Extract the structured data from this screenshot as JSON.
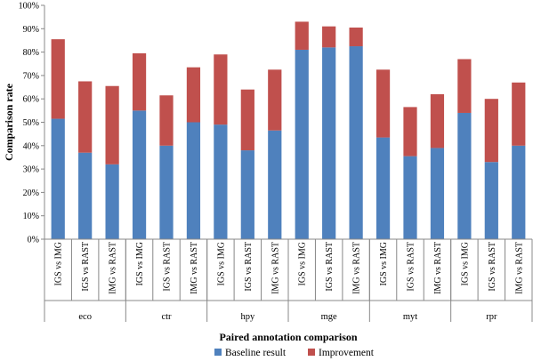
{
  "chart_data": {
    "type": "bar",
    "stacked": true,
    "xlabel": "Paired annotation comparison",
    "ylabel": "Comparison rate",
    "ylim": [
      0,
      100
    ],
    "yticks": [
      "0%",
      "10%",
      "20%",
      "30%",
      "40%",
      "50%",
      "60%",
      "70%",
      "80%",
      "90%",
      "100%"
    ],
    "groups": [
      "eco",
      "ctr",
      "hpy",
      "mge",
      "myt",
      "rpr"
    ],
    "categories": [
      "IGS vs IMG",
      "IGS vs RAST",
      "IMG vs RAST"
    ],
    "series": [
      {
        "name": "Baseline result",
        "color": "#4f81bd",
        "values": [
          [
            51.5,
            37,
            32
          ],
          [
            55,
            40,
            50
          ],
          [
            49,
            38,
            46.5
          ],
          [
            81,
            82,
            82.5
          ],
          [
            43.5,
            35.5,
            39
          ],
          [
            54,
            33,
            40
          ]
        ]
      },
      {
        "name": "Improvement",
        "color": "#c0504d",
        "values": [
          [
            34,
            30.5,
            33.5
          ],
          [
            24.5,
            21.5,
            23.5
          ],
          [
            30,
            26,
            26
          ],
          [
            12,
            9,
            8
          ],
          [
            29,
            21,
            23
          ],
          [
            23,
            27,
            27
          ]
        ]
      }
    ],
    "grid": false,
    "legend": "bottom"
  }
}
